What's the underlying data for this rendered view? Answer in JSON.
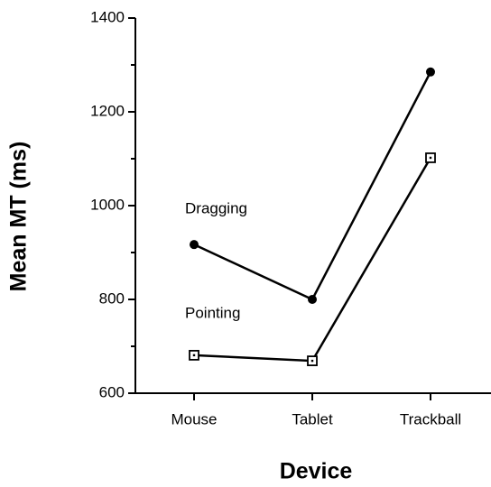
{
  "chart_data": {
    "type": "line",
    "categories": [
      "Mouse",
      "Tablet",
      "Trackball"
    ],
    "series": [
      {
        "name": "Dragging",
        "color": "#000000",
        "marker": "circle",
        "values": [
          917,
          800,
          1285
        ]
      },
      {
        "name": "Pointing",
        "color": "#000000",
        "marker": "square",
        "values": [
          681,
          669,
          1102
        ]
      }
    ],
    "x_label": "Device",
    "y_label": "Mean MT (ms)",
    "ylim": [
      600,
      1400
    ],
    "yticks": [
      600,
      800,
      1000,
      1200,
      1400
    ],
    "minor_yticks": [
      700,
      900,
      1100,
      1300
    ],
    "grid": false
  }
}
